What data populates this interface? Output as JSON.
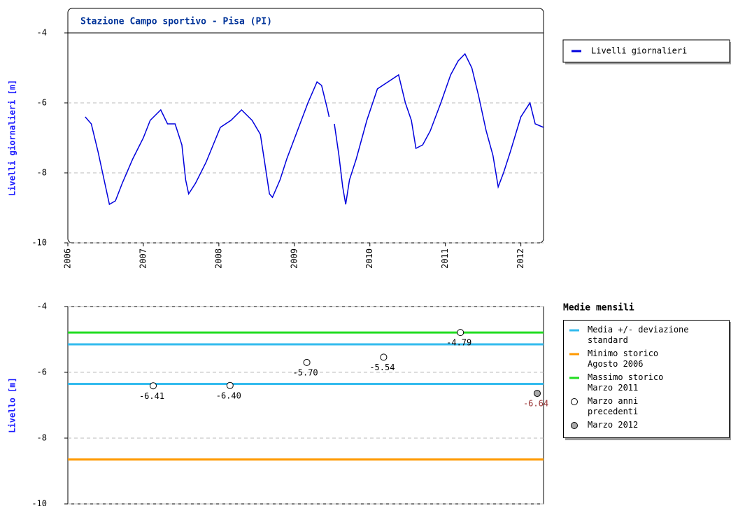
{
  "chart_data": [
    {
      "type": "line",
      "title": "Stazione Campo sportivo - Pisa (PI)",
      "ylabel": "Livelli giornalieri [m]",
      "x": [
        2006.23,
        2006.31,
        2006.4,
        2006.49,
        2006.55,
        2006.63,
        2006.72,
        2006.86,
        2007.0,
        2007.09,
        2007.23,
        2007.32,
        2007.42,
        2007.51,
        2007.56,
        2007.6,
        2007.69,
        2007.83,
        2008.02,
        2008.16,
        2008.3,
        2008.44,
        2008.55,
        2008.6,
        2008.67,
        2008.71,
        2008.81,
        2008.9,
        2009.04,
        2009.18,
        2009.3,
        2009.36,
        2009.44,
        2009.46,
        2009.49,
        2009.53,
        2009.59,
        2009.64,
        2009.68,
        2009.73,
        2009.82,
        2009.96,
        2010.1,
        2010.24,
        2010.38,
        2010.47,
        2010.55,
        2010.61,
        2010.7,
        2010.8,
        2010.94,
        2011.07,
        2011.17,
        2011.26,
        2011.35,
        2011.44,
        2011.54,
        2011.63,
        2011.7,
        2011.77,
        2011.86,
        2012.0,
        2012.12,
        2012.19,
        2012.3
      ],
      "xlim": [
        2006,
        2012.3
      ],
      "xticks": [
        2006,
        2007,
        2008,
        2009,
        2010,
        2011,
        2012
      ],
      "ylim": [
        -10,
        -4
      ],
      "yticks": [
        -10,
        -8,
        -6,
        -4
      ],
      "grid": true,
      "series": [
        {
          "name": "Livelli giornalieri",
          "color": "#0000dd",
          "values": [
            -6.4,
            -6.6,
            -7.4,
            -8.3,
            -8.9,
            -8.8,
            -8.3,
            -7.6,
            -7.0,
            -6.5,
            -6.2,
            -6.6,
            -6.6,
            -7.2,
            -8.2,
            -8.6,
            -8.3,
            -7.7,
            -6.7,
            -6.5,
            -6.2,
            -6.5,
            -6.9,
            -7.6,
            -8.6,
            -8.7,
            -8.2,
            -7.6,
            -6.8,
            -6.0,
            -5.4,
            -5.5,
            -6.2,
            -6.4,
            null,
            -6.6,
            -7.5,
            -8.4,
            -8.9,
            -8.2,
            -7.6,
            -6.5,
            -5.6,
            -5.4,
            -5.2,
            -6.0,
            -6.5,
            -7.3,
            -7.2,
            -6.8,
            -6.0,
            -5.2,
            -4.8,
            -4.6,
            -5.0,
            -5.8,
            -6.8,
            -7.5,
            -8.4,
            -8.0,
            -7.4,
            -6.4,
            -6.0,
            -6.6,
            -6.7
          ]
        }
      ]
    },
    {
      "type": "scatter",
      "ylabel": "Livello [m]",
      "legend_title": "Medie mensili",
      "categories": [
        null,
        null,
        null,
        null,
        null,
        null
      ],
      "ylim": [
        -10,
        -4
      ],
      "yticks": [
        -10,
        -8,
        -6,
        -4
      ],
      "grid": true,
      "reference_lines": [
        {
          "name": "Media +/- deviazione standard",
          "color": "#33bbee",
          "values": [
            -5.15,
            -6.35
          ]
        },
        {
          "name": "Minimo storico",
          "period": "Agosto 2006",
          "color": "#ff9900",
          "values": [
            -8.65
          ]
        },
        {
          "name": "Massimo storico",
          "period": "Marzo 2011",
          "color": "#22dd22",
          "values": [
            -4.79
          ]
        }
      ],
      "series": [
        {
          "name": "Marzo anni precedenti",
          "color": "#ffffff",
          "label_color": "#000000",
          "values": [
            -6.41,
            -6.4,
            -5.7,
            -5.54,
            -4.79,
            null
          ],
          "value_labels": [
            "-6.41",
            "-6.40",
            "-5.70",
            "-5.54",
            "-4.79",
            null
          ]
        },
        {
          "name": "Marzo 2012",
          "color": "#aaaaaa",
          "label_color": "#993333",
          "values": [
            null,
            null,
            null,
            null,
            null,
            -6.64
          ],
          "value_labels": [
            null,
            null,
            null,
            null,
            null,
            "-6.64"
          ]
        }
      ]
    }
  ]
}
